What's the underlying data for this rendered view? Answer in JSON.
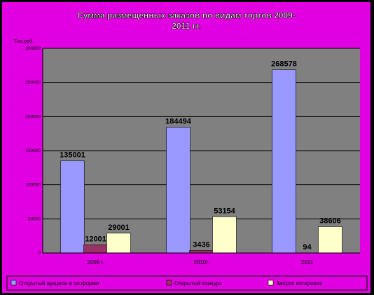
{
  "colors": {
    "background": "#000000",
    "panel": "#e100e1",
    "plot_area": "#808080",
    "gridline": "#000000",
    "title_text": "#ffffff",
    "label_text": "#000000"
  },
  "chart_data": {
    "type": "bar",
    "title": "Сумма размещенных заказов по видам торгов 2009-2011 гг.",
    "ylabel": "Тыс.руб.",
    "xlabel": "",
    "ylim": [
      0,
      300000
    ],
    "yticks": [
      0,
      50000,
      100000,
      150000,
      200000,
      250000,
      300000
    ],
    "grid": true,
    "legend_position": "bottom",
    "categories": [
      "2009 г.",
      "2010г.",
      "2011"
    ],
    "series": [
      {
        "name": "Открытый аукцион в эл.форме",
        "color": "#9999ff",
        "values": [
          135001,
          184494,
          268578
        ],
        "labels": [
          "135001",
          "184494",
          "268578"
        ]
      },
      {
        "name": "Открытый конкурс",
        "color": "#993366",
        "values": [
          12001,
          3436,
          94
        ],
        "labels": [
          "12001",
          "3436",
          "94"
        ]
      },
      {
        "name": "Запрос котировок",
        "color": "#ffffcc",
        "values": [
          29001,
          53154,
          38606
        ],
        "labels": [
          "29001",
          "53154",
          "38606"
        ]
      }
    ]
  }
}
